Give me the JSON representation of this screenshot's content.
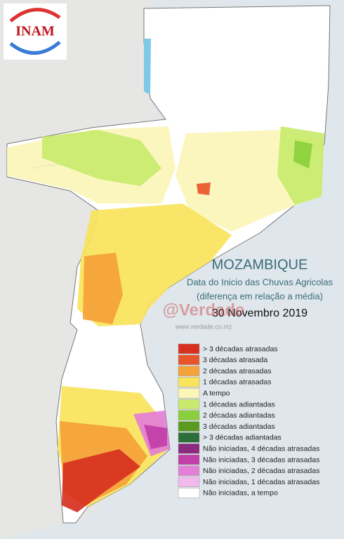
{
  "logo": {
    "text": "INAM"
  },
  "title": "MOZAMBIQUE",
  "subtitle": "Data do Inicio das Chuvas Agricolas",
  "subtitle2": "(diferença em relação a média)",
  "date": "30 Novembro 2019",
  "watermark": {
    "brand": "@Verdade",
    "url": "www.verdade.co.mz"
  },
  "legend": [
    {
      "label": "> 3 décadas atrasadas",
      "color": "#d7301f"
    },
    {
      "label": "3 décadas atrasada",
      "color": "#e8552a"
    },
    {
      "label": "2 décadas atrasadas",
      "color": "#f4a23a"
    },
    {
      "label": "1 décadas atrasadas",
      "color": "#f9e45c"
    },
    {
      "label": "A tempo",
      "color": "#fbf5b8"
    },
    {
      "label": "1 décadas adiantadas",
      "color": "#c8ea6e"
    },
    {
      "label": "2 décadas adiantadas",
      "color": "#8ccf3c"
    },
    {
      "label": "3 décadas adiantadas",
      "color": "#5a9a1e"
    },
    {
      "label": "> 3 décadas adiantadas",
      "color": "#2e6e3a"
    },
    {
      "label": "Não iniciadas, 4 décadas atrasadas",
      "color": "#8b2a7e"
    },
    {
      "label": "Não iniciadas, 3 décadas atrasadas",
      "color": "#c23ea8"
    },
    {
      "label": "Não iniciadas, 2 décadas atrasadas",
      "color": "#e37fd6"
    },
    {
      "label": "Não iniciadas, 1 décadas atrasadas",
      "color": "#f3b9ec"
    },
    {
      "label": "Não iniciadas, a tempo",
      "color": "#ffffff"
    }
  ]
}
